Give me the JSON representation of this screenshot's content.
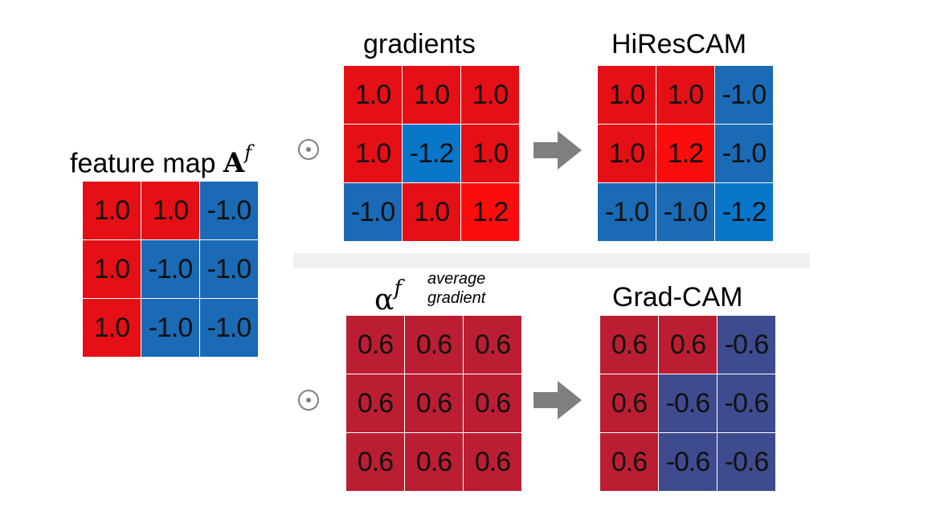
{
  "feature_map": {
    "label": "feature map ",
    "symbol": "A",
    "superscript": "f",
    "cells": [
      {
        "v": "1.0",
        "c": "#e50f16"
      },
      {
        "v": "1.0",
        "c": "#e50f16"
      },
      {
        "v": "-1.0",
        "c": "#1a6ab5"
      },
      {
        "v": "1.0",
        "c": "#e50f16"
      },
      {
        "v": "-1.0",
        "c": "#1a6ab5"
      },
      {
        "v": "-1.0",
        "c": "#1a6ab5"
      },
      {
        "v": "1.0",
        "c": "#e50f16"
      },
      {
        "v": "-1.0",
        "c": "#1a6ab5"
      },
      {
        "v": "-1.0",
        "c": "#1a6ab5"
      }
    ]
  },
  "gradients": {
    "label": "gradients",
    "cells": [
      {
        "v": "1.0",
        "c": "#e50f16"
      },
      {
        "v": "1.0",
        "c": "#e50f16"
      },
      {
        "v": "1.0",
        "c": "#e50f16"
      },
      {
        "v": "1.0",
        "c": "#e50f16"
      },
      {
        "v": "-1.2",
        "c": "#0876c9"
      },
      {
        "v": "1.0",
        "c": "#e50f16"
      },
      {
        "v": "-1.0",
        "c": "#1a6ab5"
      },
      {
        "v": "1.0",
        "c": "#e50f16"
      },
      {
        "v": "1.2",
        "c": "#fb0d0d"
      }
    ]
  },
  "hirescam": {
    "label": "HiResCAM",
    "cells": [
      {
        "v": "1.0",
        "c": "#e50f16"
      },
      {
        "v": "1.0",
        "c": "#e50f16"
      },
      {
        "v": "-1.0",
        "c": "#1a6ab5"
      },
      {
        "v": "1.0",
        "c": "#e50f16"
      },
      {
        "v": "1.2",
        "c": "#fb0d0d"
      },
      {
        "v": "-1.0",
        "c": "#1a6ab5"
      },
      {
        "v": "-1.0",
        "c": "#1a6ab5"
      },
      {
        "v": "-1.0",
        "c": "#1a6ab5"
      },
      {
        "v": "-1.2",
        "c": "#0876c9"
      }
    ]
  },
  "average_gradient": {
    "symbol": "α",
    "superscript": "f",
    "note_line1": "average",
    "note_line2": "gradient",
    "cells": [
      {
        "v": "0.6",
        "c": "#bb1e32"
      },
      {
        "v": "0.6",
        "c": "#bb1e32"
      },
      {
        "v": "0.6",
        "c": "#bb1e32"
      },
      {
        "v": "0.6",
        "c": "#bb1e32"
      },
      {
        "v": "0.6",
        "c": "#bb1e32"
      },
      {
        "v": "0.6",
        "c": "#bb1e32"
      },
      {
        "v": "0.6",
        "c": "#bb1e32"
      },
      {
        "v": "0.6",
        "c": "#bb1e32"
      },
      {
        "v": "0.6",
        "c": "#bb1e32"
      }
    ]
  },
  "gradcam": {
    "label": "Grad-CAM",
    "cells": [
      {
        "v": "0.6",
        "c": "#bb1e32"
      },
      {
        "v": "0.6",
        "c": "#bb1e32"
      },
      {
        "v": "-0.6",
        "c": "#3e4b8e"
      },
      {
        "v": "0.6",
        "c": "#bb1e32"
      },
      {
        "v": "-0.6",
        "c": "#3e4b8e"
      },
      {
        "v": "-0.6",
        "c": "#3e4b8e"
      },
      {
        "v": "0.6",
        "c": "#bb1e32"
      },
      {
        "v": "-0.6",
        "c": "#3e4b8e"
      },
      {
        "v": "-0.6",
        "c": "#3e4b8e"
      }
    ]
  },
  "icons": {
    "hadamard_operator": "odot-icon",
    "flow_arrow": "right-arrow-icon",
    "operator_color": "#7f7f7f"
  }
}
